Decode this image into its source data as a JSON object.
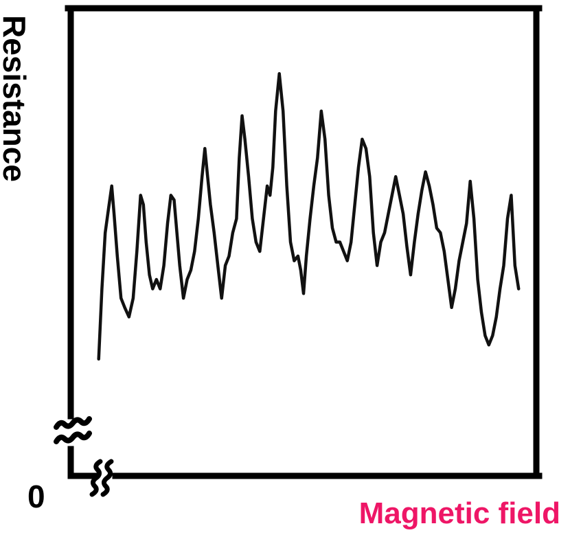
{
  "chart_data": {
    "type": "line",
    "title": "",
    "xlabel": "Magnetic field",
    "ylabel": "Resistance",
    "origin_label": "0",
    "xlabel_color": "#ee1666",
    "line_color": "#111111",
    "axis_break": true,
    "grid": false,
    "xlim": [
      0,
      1
    ],
    "ylim": [
      0,
      1
    ],
    "series": [
      {
        "x": [
          0.06,
          0.067,
          0.074,
          0.081,
          0.088,
          0.093,
          0.1,
          0.108,
          0.116,
          0.125,
          0.134,
          0.142,
          0.15,
          0.156,
          0.162,
          0.169,
          0.176,
          0.184,
          0.192,
          0.2,
          0.208,
          0.215,
          0.222,
          0.228,
          0.234,
          0.242,
          0.25,
          0.258,
          0.266,
          0.274,
          0.282,
          0.288,
          0.294,
          0.3,
          0.308,
          0.316,
          0.324,
          0.332,
          0.34,
          0.348,
          0.356,
          0.362,
          0.368,
          0.374,
          0.382,
          0.39,
          0.398,
          0.406,
          0.414,
          0.422,
          0.428,
          0.434,
          0.44,
          0.448,
          0.456,
          0.464,
          0.472,
          0.48,
          0.488,
          0.494,
          0.5,
          0.506,
          0.514,
          0.522,
          0.53,
          0.538,
          0.546,
          0.554,
          0.562,
          0.57,
          0.578,
          0.586,
          0.594,
          0.602,
          0.61,
          0.618,
          0.626,
          0.634,
          0.642,
          0.65,
          0.658,
          0.666,
          0.674,
          0.682,
          0.69,
          0.698,
          0.706,
          0.714,
          0.722,
          0.73,
          0.738,
          0.746,
          0.754,
          0.762,
          0.77,
          0.778,
          0.786,
          0.794,
          0.802,
          0.81,
          0.818,
          0.826,
          0.834,
          0.842,
          0.85,
          0.858,
          0.866,
          0.874,
          0.882,
          0.89,
          0.898,
          0.906,
          0.914,
          0.922,
          0.93,
          0.938,
          0.946,
          0.954,
          0.962
        ],
        "y": [
          0.25,
          0.4,
          0.52,
          0.57,
          0.62,
          0.56,
          0.47,
          0.38,
          0.36,
          0.34,
          0.38,
          0.48,
          0.6,
          0.58,
          0.5,
          0.43,
          0.4,
          0.42,
          0.4,
          0.45,
          0.54,
          0.6,
          0.59,
          0.52,
          0.45,
          0.38,
          0.42,
          0.44,
          0.48,
          0.55,
          0.64,
          0.7,
          0.64,
          0.58,
          0.52,
          0.45,
          0.38,
          0.45,
          0.47,
          0.52,
          0.55,
          0.68,
          0.77,
          0.72,
          0.64,
          0.55,
          0.5,
          0.48,
          0.55,
          0.62,
          0.6,
          0.66,
          0.78,
          0.86,
          0.78,
          0.62,
          0.5,
          0.46,
          0.47,
          0.44,
          0.39,
          0.47,
          0.55,
          0.62,
          0.68,
          0.78,
          0.72,
          0.6,
          0.53,
          0.5,
          0.5,
          0.48,
          0.46,
          0.5,
          0.58,
          0.66,
          0.72,
          0.7,
          0.64,
          0.52,
          0.45,
          0.5,
          0.52,
          0.56,
          0.6,
          0.64,
          0.6,
          0.56,
          0.49,
          0.43,
          0.5,
          0.56,
          0.61,
          0.65,
          0.62,
          0.58,
          0.53,
          0.52,
          0.48,
          0.42,
          0.36,
          0.4,
          0.46,
          0.5,
          0.54,
          0.63,
          0.55,
          0.42,
          0.35,
          0.3,
          0.28,
          0.3,
          0.34,
          0.4,
          0.45,
          0.55,
          0.6,
          0.45,
          0.4
        ]
      }
    ]
  }
}
